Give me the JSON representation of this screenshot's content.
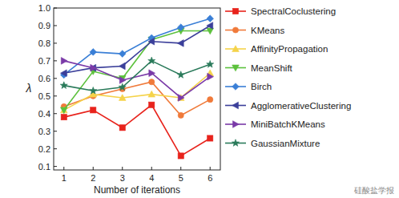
{
  "chart_data": {
    "type": "line",
    "x_label": "Number of iterations",
    "y_label": "λ",
    "x": [
      1,
      2,
      3,
      4,
      5,
      6
    ],
    "xlim": [
      0.65,
      6.35
    ],
    "xticks": [
      1,
      2,
      3,
      4,
      5,
      6
    ],
    "ylim": [
      0.08,
      1.0
    ],
    "yticks": [
      0.1,
      0.2,
      0.3,
      0.4,
      0.5,
      0.6,
      0.7,
      0.8,
      0.9,
      {
        "value": 1,
        "label": "1.0"
      }
    ],
    "grid": false,
    "legend": "right",
    "watermark": "硅酸盐学报",
    "series": [
      {
        "name": "SpectralCoclustering",
        "color": "#e8231c",
        "marker": "square",
        "values": [
          0.38,
          0.42,
          0.32,
          0.45,
          0.16,
          0.26
        ]
      },
      {
        "name": "KMeans",
        "color": "#f07a3a",
        "marker": "circle",
        "values": [
          0.44,
          0.5,
          0.54,
          0.58,
          0.39,
          0.48
        ]
      },
      {
        "name": "AffinityPropagation",
        "color": "#f5d34a",
        "marker": "triangle-up",
        "values": [
          0.42,
          0.51,
          0.49,
          0.51,
          0.49,
          0.63
        ]
      },
      {
        "name": "MeanShift",
        "color": "#5cc13c",
        "marker": "triangle-down",
        "values": [
          0.42,
          0.64,
          0.6,
          0.82,
          0.87,
          0.87
        ]
      },
      {
        "name": "Birch",
        "color": "#3a7fd6",
        "marker": "diamond",
        "values": [
          0.62,
          0.75,
          0.74,
          0.83,
          0.89,
          0.94
        ]
      },
      {
        "name": "AgglomerativeClustering",
        "color": "#3b3f9a",
        "marker": "triangle-left",
        "values": [
          0.63,
          0.66,
          0.67,
          0.81,
          0.8,
          0.9
        ]
      },
      {
        "name": "MiniBatchKMeans",
        "color": "#7a3aa8",
        "marker": "triangle-right",
        "values": [
          0.7,
          0.66,
          0.59,
          0.63,
          0.49,
          0.61
        ]
      },
      {
        "name": "GaussianMixture",
        "color": "#2a7a5a",
        "marker": "star",
        "values": [
          0.56,
          0.53,
          0.55,
          0.7,
          0.62,
          0.68
        ]
      }
    ]
  }
}
